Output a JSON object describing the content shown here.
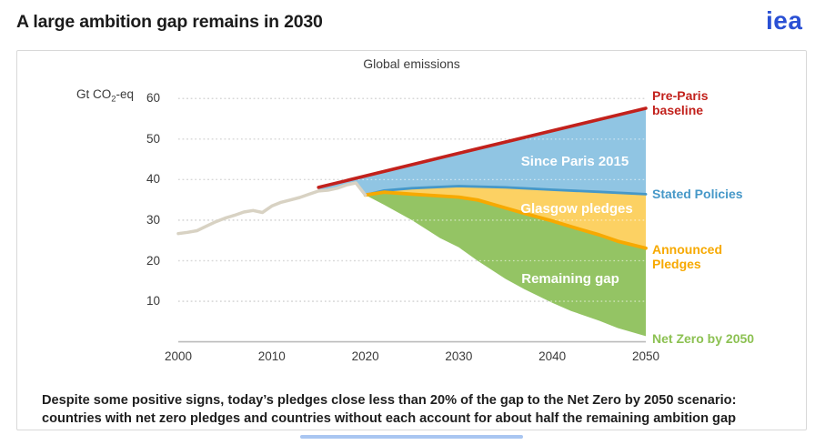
{
  "header": {
    "title": "A large ambition gap remains in 2030",
    "logo_text": "iea",
    "logo_color": "#2a50d4"
  },
  "chart_data": {
    "type": "area",
    "title": "Global emissions",
    "unit_prefix": "Gt CO",
    "unit_sub": "2",
    "unit_suffix": "-eq",
    "xlim": [
      2000,
      2050
    ],
    "ylim": [
      0,
      63
    ],
    "x_ticks": [
      2000,
      2010,
      2020,
      2030,
      2040,
      2050
    ],
    "y_ticks": [
      60,
      50,
      40,
      30,
      20,
      10
    ],
    "grid": "horizontal-dotted",
    "series": [
      {
        "name": "Stated Policies",
        "color": "#4698c8",
        "x": [
          2015,
          2016,
          2017,
          2018,
          2019,
          2020,
          2022,
          2025,
          2030,
          2035,
          2040,
          2045,
          2050
        ],
        "y": [
          37.2,
          37.4,
          37.9,
          38.7,
          39.2,
          36.2,
          37.3,
          37.9,
          38.4,
          38.1,
          37.5,
          37.0,
          36.4
        ]
      },
      {
        "name": "Announced Pledges",
        "color": "#f7a900",
        "x": [
          2020,
          2022,
          2025,
          2030,
          2032,
          2035,
          2037,
          2040,
          2042,
          2045,
          2047,
          2050
        ],
        "y": [
          36.2,
          36.9,
          36.4,
          35.7,
          35.0,
          33.0,
          31.7,
          29.8,
          28.4,
          26.4,
          24.8,
          23.1
        ]
      },
      {
        "name": "Historical",
        "color": "#d8d2c3",
        "x": [
          2000,
          2001,
          2002,
          2003,
          2004,
          2005,
          2006,
          2007,
          2008,
          2009,
          2010,
          2011,
          2012,
          2013,
          2014,
          2015,
          2016,
          2017,
          2018,
          2019,
          2020
        ],
        "y": [
          26.7,
          27.0,
          27.4,
          28.5,
          29.6,
          30.5,
          31.2,
          32.0,
          32.4,
          31.9,
          33.5,
          34.4,
          35.0,
          35.6,
          36.4,
          37.2,
          37.4,
          37.9,
          38.7,
          39.2,
          36.2
        ]
      },
      {
        "name": "Pre-Paris baseline",
        "color": "#c2211c",
        "x": [
          2015,
          2030,
          2050
        ],
        "y": [
          38.1,
          46.5,
          57.6
        ]
      },
      {
        "name": "Net Zero by 2050",
        "color": "#94c464",
        "x": [
          2020,
          2022,
          2025,
          2028,
          2030,
          2032,
          2035,
          2037,
          2040,
          2042,
          2045,
          2047,
          2050
        ],
        "y": [
          36.2,
          33.8,
          30.0,
          25.6,
          23.3,
          20.0,
          15.5,
          13.0,
          9.6,
          7.6,
          5.2,
          3.4,
          1.4
        ]
      }
    ],
    "bands": [
      {
        "name": "Since Paris 2015",
        "top": "Pre-Paris baseline",
        "bottom": "Stated Policies",
        "color": "#90c5e3",
        "x_start": 2015
      },
      {
        "name": "Glasgow pledges",
        "top": "Stated Policies",
        "bottom": "Announced Pledges",
        "color": "#fcd163",
        "x_start": 2020
      },
      {
        "name": "Remaining gap",
        "top": "Announced Pledges",
        "bottom": "Net Zero by 2050",
        "color": "#94c464",
        "x_start": 2020
      }
    ],
    "annotations": {
      "since_paris": {
        "text": "Since Paris 2015",
        "color": "#ffffff"
      },
      "glasgow": {
        "text": "Glasgow pledges",
        "color": "#ffffff"
      },
      "remaining": {
        "text": "Remaining gap",
        "color": "#ffffff"
      },
      "pre_paris": {
        "text": "Pre-Paris baseline",
        "color": "#c2211c"
      },
      "stated": {
        "text": "Stated Policies",
        "color": "#4698c8"
      },
      "announced": {
        "text": "Announced Pledges",
        "color": "#f7a900"
      },
      "net_zero": {
        "text": "Net Zero by 2050",
        "color": "#8cc152"
      }
    }
  },
  "caption": {
    "line1": "Despite some positive signs, today’s pledges close less than 20% of the gap to the Net Zero by 2050 scenario:",
    "line2": "countries with net zero pledges and countries without each account for about half the remaining ambition gap"
  }
}
